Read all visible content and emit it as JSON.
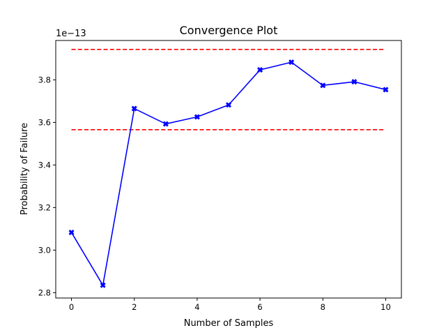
{
  "chart_data": {
    "type": "line",
    "title": "Convergence Plot",
    "xlabel": "Number of Samples",
    "ylabel": "Probability of Failure",
    "offset_label": "1e−13",
    "xlim": [
      -0.5,
      10.5
    ],
    "ylim": [
      2.775,
      3.985
    ],
    "grid": false,
    "x_ticks": [
      0,
      2,
      4,
      6,
      8,
      10
    ],
    "y_ticks": [
      2.8,
      3.0,
      3.2,
      3.4,
      3.6,
      3.8
    ],
    "x_tick_labels": [
      "0",
      "2",
      "4",
      "6",
      "8",
      "10"
    ],
    "y_tick_labels": [
      "2.8",
      "3.0",
      "3.2",
      "3.4",
      "3.6",
      "3.8"
    ],
    "series": [
      {
        "style": "solid",
        "marker": "X",
        "color": "#0000ff",
        "x": [
          0,
          1,
          2,
          3,
          4,
          5,
          6,
          7,
          8,
          9,
          10
        ],
        "values": [
          3.083,
          2.835,
          3.665,
          3.593,
          3.626,
          3.682,
          3.847,
          3.883,
          3.774,
          3.791,
          3.754
        ]
      }
    ],
    "reference_lines": [
      {
        "y": 3.943,
        "style": "dashed",
        "color": "#ff0000"
      },
      {
        "y": 3.566,
        "style": "dashed",
        "color": "#ff0000"
      }
    ]
  }
}
